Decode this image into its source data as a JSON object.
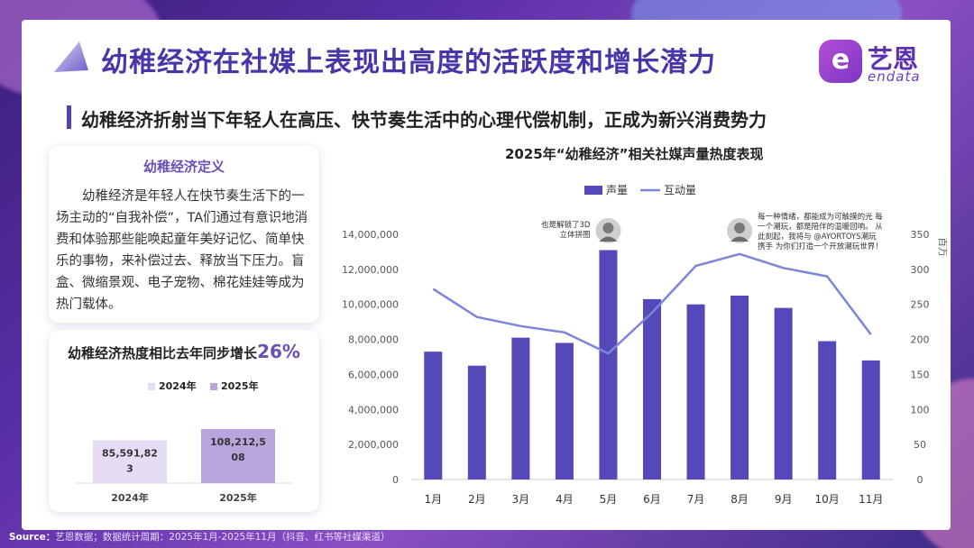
{
  "header": {
    "title": "幼稚经济在社媒上表现出高度的活跃度和增长潜力",
    "subtitle": "幼稚经济折射当下年轻人在高压、快节奏生活中的心理代偿机制，正成为新兴消费势力"
  },
  "brand": {
    "name": "艺恩",
    "sub": "endata",
    "icon": "e-logo-icon"
  },
  "definition": {
    "title": "幼稚经济定义",
    "text": "幼稚经济是年轻人在快节奏生活下的一场主动的“自我补偿”，TA们通过有意识地消费和体验那些能唤起童年美好记忆、简单快乐的事物，来补偿过去、释放当下压力。盲盒、微缩景观、电子宠物、棉花娃娃等成为热门载体。"
  },
  "growth": {
    "title": "幼稚经济热度相比去年同步增长",
    "percent": "26%",
    "legend": [
      "2024年",
      "2025年"
    ],
    "categories": [
      "2024年",
      "2025年"
    ],
    "values": [
      85591823,
      108212508
    ],
    "value_labels": [
      "85,591,82\n3",
      "108,212,5\n08"
    ],
    "colors": [
      "#e6dcf3",
      "#b9a5dc"
    ]
  },
  "chart_data": {
    "type": "bar",
    "title": "2025年“幼稚经济”相关社媒声量热度表现",
    "categories": [
      "1月",
      "2月",
      "3月",
      "4月",
      "5月",
      "6月",
      "7月",
      "8月",
      "9月",
      "10月",
      "11月"
    ],
    "series": [
      {
        "name": "声量",
        "type": "bar",
        "axis": "left",
        "color": "#5548b8",
        "values": [
          7300000,
          6500000,
          8100000,
          7800000,
          13100000,
          10300000,
          10000000,
          10500000,
          9800000,
          7900000,
          6800000
        ]
      },
      {
        "name": "互动量",
        "type": "line",
        "axis": "right",
        "color": "#7b86d8",
        "values": [
          272,
          232,
          219,
          210,
          180,
          238,
          305,
          322,
          302,
          290,
          207
        ]
      }
    ],
    "ylim_left": [
      0,
      14000000
    ],
    "yticks_left": [
      "0",
      "2,000,000",
      "4,000,000",
      "6,000,000",
      "8,000,000",
      "10,000,000",
      "12,000,000",
      "14,000,000"
    ],
    "ylim_right": [
      0,
      350
    ],
    "yticks_right": [
      "0",
      "50",
      "100",
      "150",
      "200",
      "250",
      "300",
      "350"
    ],
    "ylabel_right": "百万",
    "legend": "top-center",
    "annotations": [
      {
        "month_index": 4,
        "text": [
          "也是解锁了3D",
          "立体拼图"
        ]
      },
      {
        "month_index": 7,
        "text": [
          "每一种情绪，都能成为可触摸的光 每",
          "一个潮玩，都是陪伴的温暖回响。 从",
          "此刻起，我将与 @AYORTOYS潮玩",
          "携手 为你们打造一个开放潮玩世界！"
        ]
      }
    ]
  },
  "source": {
    "label": "Source：",
    "text": "艺恩数据；数据统计周期：2025年1月-2025年11月（抖音、红书等社媒渠道）"
  }
}
